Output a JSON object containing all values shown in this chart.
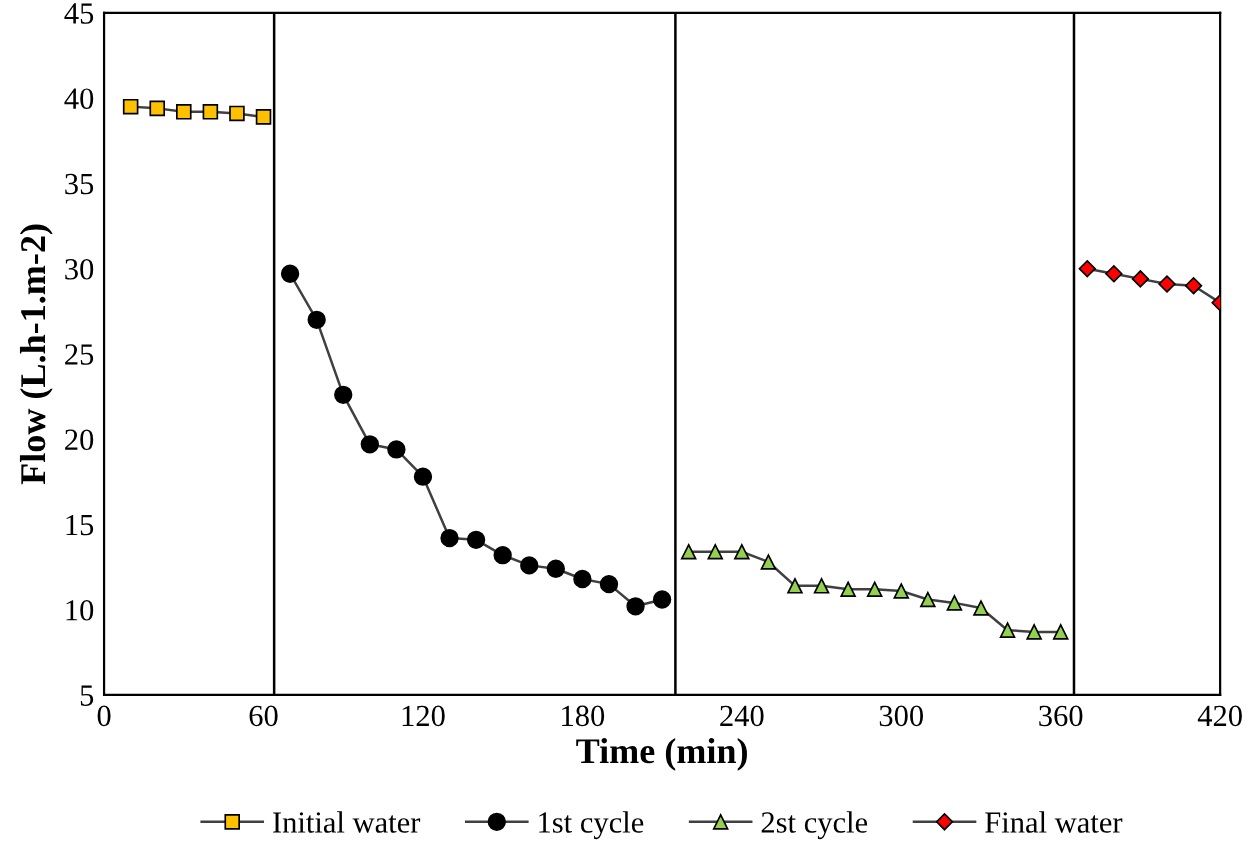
{
  "chart_data": {
    "type": "line",
    "xlabel": "Time (min)",
    "ylabel": "Flow (L.h-1.m-2)",
    "xlim": [
      0,
      420
    ],
    "ylim": [
      5,
      45
    ],
    "xticks": [
      0,
      60,
      120,
      180,
      240,
      300,
      360,
      420
    ],
    "yticks": [
      5,
      10,
      15,
      20,
      25,
      30,
      35,
      40,
      45
    ],
    "grid": false,
    "legend": "bottom",
    "series": [
      {
        "name": "Initial water",
        "color": "#ffc000",
        "marker": "square",
        "x": [
          10,
          20,
          30,
          40,
          50,
          60
        ],
        "values": [
          39.5,
          39.4,
          39.2,
          39.2,
          39.1,
          38.9
        ]
      },
      {
        "name": "1st cycle",
        "color": "#000000",
        "marker": "circle",
        "x": [
          70,
          80,
          90,
          100,
          110,
          120,
          130,
          140,
          150,
          160,
          170,
          180,
          190,
          200,
          210
        ],
        "values": [
          29.7,
          27.0,
          22.6,
          19.7,
          19.4,
          17.8,
          14.2,
          14.1,
          13.2,
          12.6,
          12.4,
          11.8,
          11.5,
          10.2,
          10.6
        ]
      },
      {
        "name": "2st cycle",
        "color": "#92d050",
        "marker": "triangle",
        "x": [
          220,
          230,
          240,
          250,
          260,
          270,
          280,
          290,
          300,
          310,
          320,
          330,
          340,
          350,
          360
        ],
        "values": [
          13.4,
          13.4,
          13.4,
          12.8,
          11.4,
          11.4,
          11.2,
          11.2,
          11.1,
          10.6,
          10.4,
          10.1,
          8.8,
          8.7,
          8.7
        ]
      },
      {
        "name": "Final water",
        "color": "#ff0000",
        "marker": "diamond",
        "x": [
          370,
          380,
          390,
          400,
          410,
          420
        ],
        "values": [
          30.0,
          29.7,
          29.4,
          29.1,
          29.0,
          28.0
        ]
      }
    ],
    "ref_lines": [
      {
        "axis": "x",
        "value": 64,
        "color": "#000000"
      },
      {
        "axis": "x",
        "value": 215,
        "color": "#000000"
      },
      {
        "axis": "x",
        "value": 365,
        "color": "#000000"
      }
    ]
  }
}
